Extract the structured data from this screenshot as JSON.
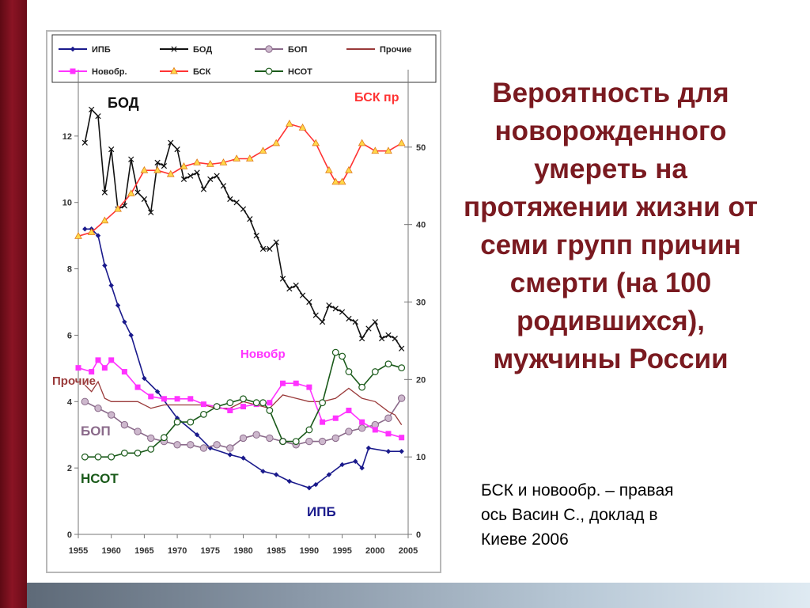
{
  "slide": {
    "title": "Вероятность для новорожденного умереть на протяжении жизни от семи групп причин смерти (на 100 родившихся), мужчины России",
    "note": "БСК и новообр. – правая\nось   Васин С., доклад в\nКиеве 2006"
  },
  "chart_data": {
    "type": "line",
    "title": "",
    "xlabel": "",
    "ylabel": "",
    "x_ticks": [
      1955,
      1960,
      1965,
      1970,
      1975,
      1980,
      1985,
      1990,
      1995,
      2000,
      2005
    ],
    "xlim": [
      1955,
      2005
    ],
    "ylim_left": [
      0,
      14
    ],
    "ylim_right": [
      0,
      60
    ],
    "yticks_left": [
      0,
      2,
      4,
      6,
      8,
      10,
      12
    ],
    "yticks_right": [
      0,
      10,
      20,
      30,
      40,
      50
    ],
    "grid": false,
    "legend": {
      "placement": "top",
      "entries": [
        {
          "name": "ИПБ",
          "color": "#1a1a8c",
          "marker": "diamond"
        },
        {
          "name": "БОД",
          "color": "#111111",
          "marker": "x"
        },
        {
          "name": "БОП",
          "color": "#8a6a8a",
          "marker": "circle"
        },
        {
          "name": "Прочие",
          "color": "#9a3a3a",
          "marker": "none"
        },
        {
          "name": "Новобр.",
          "color": "#ff33ff",
          "marker": "square"
        },
        {
          "name": "БСК",
          "color": "#ff3333",
          "marker": "triangle"
        },
        {
          "name": "НСОТ",
          "color": "#1a5a1a",
          "marker": "circle-open"
        }
      ]
    },
    "annotations": [
      {
        "text": "БОД",
        "color": "#111111",
        "series": "БОД"
      },
      {
        "text": "БСК пр",
        "color": "#ff3333",
        "series": "БСК"
      },
      {
        "text": "Новобр",
        "color": "#ff33ff",
        "series": "Новобр."
      },
      {
        "text": "Прочие",
        "color": "#9a3a3a",
        "series": "Прочие"
      },
      {
        "text": "БОП",
        "color": "#8a6a8a",
        "series": "БОП"
      },
      {
        "text": "НСОТ",
        "color": "#1a5a1a",
        "series": "НСОТ"
      },
      {
        "text": "ИПБ",
        "color": "#1a1a8c",
        "series": "ИПБ"
      }
    ],
    "series": [
      {
        "name": "ИПБ",
        "axis": "left",
        "color": "#1a1a8c",
        "marker": "diamond",
        "x": [
          1956,
          1957,
          1958,
          1959,
          1960,
          1961,
          1962,
          1963,
          1965,
          1967,
          1970,
          1973,
          1975,
          1978,
          1980,
          1983,
          1985,
          1987,
          1990,
          1991,
          1993,
          1995,
          1997,
          1998,
          1999,
          2002,
          2004
        ],
        "y": [
          9.2,
          9.2,
          9.0,
          8.1,
          7.5,
          6.9,
          6.4,
          6.0,
          4.7,
          4.3,
          3.5,
          3.0,
          2.6,
          2.4,
          2.3,
          1.9,
          1.8,
          1.6,
          1.4,
          1.5,
          1.8,
          2.1,
          2.2,
          2.0,
          2.6,
          2.5,
          2.5
        ]
      },
      {
        "name": "БОД",
        "axis": "left",
        "color": "#111111",
        "marker": "x",
        "x": [
          1956,
          1957,
          1958,
          1959,
          1960,
          1961,
          1962,
          1963,
          1964,
          1965,
          1966,
          1967,
          1968,
          1969,
          1970,
          1971,
          1972,
          1973,
          1974,
          1975,
          1976,
          1977,
          1978,
          1979,
          1980,
          1981,
          1982,
          1983,
          1984,
          1985,
          1986,
          1987,
          1988,
          1989,
          1990,
          1991,
          1992,
          1993,
          1994,
          1995,
          1996,
          1997,
          1998,
          1999,
          2000,
          2001,
          2002,
          2003,
          2004
        ],
        "y": [
          11.8,
          12.8,
          12.6,
          10.3,
          11.6,
          9.8,
          9.9,
          11.3,
          10.3,
          10.1,
          9.7,
          11.2,
          11.1,
          11.8,
          11.6,
          10.7,
          10.8,
          10.9,
          10.4,
          10.7,
          10.8,
          10.5,
          10.1,
          10.0,
          9.8,
          9.5,
          9.0,
          8.6,
          8.6,
          8.8,
          7.7,
          7.4,
          7.5,
          7.2,
          7.0,
          6.6,
          6.4,
          6.9,
          6.8,
          6.7,
          6.5,
          6.4,
          5.9,
          6.2,
          6.4,
          5.9,
          6.0,
          5.9,
          5.6
        ]
      },
      {
        "name": "БОП",
        "axis": "left",
        "color": "#8a6a8a",
        "marker": "circle",
        "x": [
          1956,
          1958,
          1960,
          1962,
          1964,
          1966,
          1968,
          1970,
          1972,
          1974,
          1976,
          1978,
          1980,
          1982,
          1984,
          1986,
          1988,
          1990,
          1992,
          1994,
          1996,
          1998,
          2000,
          2002,
          2004
        ],
        "y": [
          4.0,
          3.8,
          3.6,
          3.3,
          3.1,
          2.9,
          2.8,
          2.7,
          2.7,
          2.6,
          2.7,
          2.6,
          2.9,
          3.0,
          2.9,
          2.8,
          2.7,
          2.8,
          2.8,
          2.9,
          3.1,
          3.2,
          3.3,
          3.5,
          4.1
        ]
      },
      {
        "name": "Прочие",
        "axis": "left",
        "color": "#9a3a3a",
        "marker": "none",
        "x": [
          1956,
          1957,
          1958,
          1959,
          1960,
          1962,
          1964,
          1966,
          1968,
          1970,
          1972,
          1974,
          1976,
          1978,
          1980,
          1982,
          1984,
          1986,
          1988,
          1990,
          1992,
          1994,
          1996,
          1998,
          2000,
          2002,
          2003,
          2004
        ],
        "y": [
          4.5,
          4.3,
          4.6,
          4.1,
          4.0,
          4.0,
          4.0,
          3.8,
          3.9,
          3.9,
          3.9,
          3.9,
          3.8,
          3.8,
          4.0,
          3.9,
          3.8,
          4.2,
          4.1,
          4.0,
          4.0,
          4.1,
          4.4,
          4.1,
          4.0,
          3.7,
          3.6,
          3.3
        ]
      },
      {
        "name": "Новобр.",
        "axis": "right",
        "color": "#ff33ff",
        "marker": "square",
        "x": [
          1955,
          1957,
          1958,
          1959,
          1960,
          1962,
          1964,
          1966,
          1968,
          1970,
          1972,
          1974,
          1976,
          1978,
          1980,
          1982,
          1984,
          1986,
          1988,
          1990,
          1992,
          1994,
          1996,
          1998,
          2000,
          2002,
          2004
        ],
        "y": [
          21.5,
          21.0,
          22.5,
          21.5,
          22.5,
          21.0,
          19.0,
          17.8,
          17.5,
          17.5,
          17.5,
          16.8,
          16.5,
          16.0,
          16.5,
          16.8,
          17.0,
          19.5,
          19.5,
          19.0,
          14.5,
          15.0,
          16.0,
          14.5,
          13.5,
          13.0,
          12.5
        ]
      },
      {
        "name": "БСК",
        "axis": "right",
        "color": "#ff3333",
        "marker": "triangle",
        "x": [
          1955,
          1957,
          1959,
          1961,
          1963,
          1965,
          1967,
          1969,
          1971,
          1973,
          1975,
          1977,
          1979,
          1981,
          1983,
          1985,
          1987,
          1989,
          1991,
          1993,
          1994,
          1995,
          1996,
          1998,
          2000,
          2002,
          2004
        ],
        "y": [
          38.5,
          39.0,
          40.5,
          42.0,
          44.0,
          47.0,
          47.0,
          46.5,
          47.5,
          48.0,
          47.8,
          48.0,
          48.5,
          48.5,
          49.5,
          50.5,
          53.0,
          52.5,
          50.5,
          47.0,
          45.5,
          45.5,
          47.0,
          50.5,
          49.5,
          49.5,
          50.5
        ]
      },
      {
        "name": "НСОТ",
        "axis": "right",
        "color": "#1a5a1a",
        "marker": "circle-open",
        "x": [
          1956,
          1958,
          1960,
          1962,
          1964,
          1966,
          1968,
          1970,
          1972,
          1974,
          1976,
          1978,
          1980,
          1982,
          1983,
          1984,
          1986,
          1988,
          1990,
          1992,
          1994,
          1995,
          1996,
          1998,
          2000,
          2002,
          2004
        ],
        "y": [
          10.0,
          10.0,
          10.0,
          10.5,
          10.5,
          11.0,
          12.5,
          14.5,
          14.5,
          15.5,
          16.5,
          17.0,
          17.5,
          17.0,
          17.0,
          16.0,
          12.0,
          12.0,
          13.5,
          17.0,
          23.5,
          23.0,
          21.0,
          19.0,
          21.0,
          22.0,
          21.5
        ]
      }
    ]
  }
}
